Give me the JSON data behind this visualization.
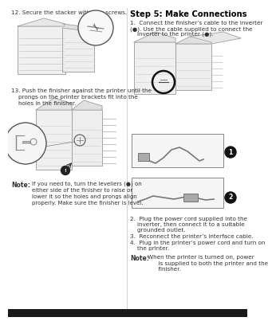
{
  "bg_color": "#ffffff",
  "left_col": {
    "step12_text": "12. Secure the stacker with four screws.",
    "step13_text": "13. Push the finisher against the printer until the\n    prongs on the printer brackets fit into the\n    holes in the finisher.",
    "note_label": "Note:",
    "note_text": "If you need to, turn the levellers (●) on\neither side of the finisher to raise or\nlower it so the holes and prongs align\nproperly. Make sure the finisher is level."
  },
  "right_col": {
    "heading": "Step 5: Make Connections",
    "item1_a": "1.  Connect the finisher’s cable to the inverter",
    "item1_b": "(●). Use the cable supplied to connect the",
    "item1_c": "    inverter to the printer (●).",
    "item2_a": "2.  Plug the power cord supplied into the",
    "item2_b": "    inverter, then connect it to a suitable",
    "item2_c": "    grounded outlet.",
    "item3": "3.  Reconnect the printer’s interface cable.",
    "item4_a": "4.  Plug in the printer’s power cord and turn on",
    "item4_b": "    the printer.",
    "note_label": "Note:",
    "note_text": "When the printer is turned on, power\n      is supplied to both the printer and the\n      finisher."
  },
  "divider_color": "#cccccc",
  "text_color": "#333333",
  "heading_color": "#000000",
  "font_size": 5.2,
  "heading_font_size": 7.2,
  "note_label_font_size": 5.5,
  "bottom_bar_color": "#1a1a1a",
  "bottom_bar_height": 10,
  "img_line_color": "#888888",
  "img_line_color2": "#aaaaaa",
  "circle_color": "#555555",
  "box_color": "#dddddd"
}
